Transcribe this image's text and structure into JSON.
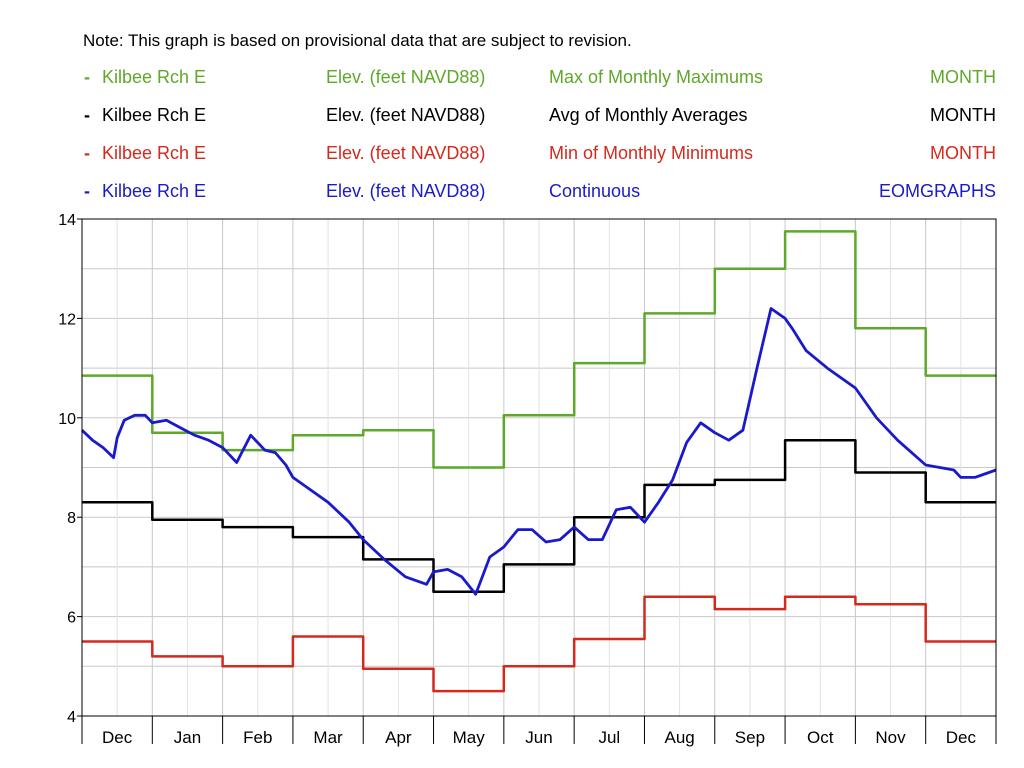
{
  "note": "Note: This graph is based on provisional data that are subject to revision.",
  "legend": [
    {
      "dash": "-",
      "site": "Kilbee Rch E",
      "parameter": "Elev. (feet NAVD88)",
      "statistic": "Max of Monthly Maximums",
      "interval": "MONTH",
      "color": "#5fa82a"
    },
    {
      "dash": "-",
      "site": "Kilbee Rch E",
      "parameter": "Elev. (feet NAVD88)",
      "statistic": "Avg of Monthly Averages",
      "interval": "MONTH",
      "color": "#000000"
    },
    {
      "dash": "-",
      "site": "Kilbee Rch E",
      "parameter": "Elev. (feet NAVD88)",
      "statistic": "Min of Monthly Minimums",
      "interval": "MONTH",
      "color": "#d42a1e"
    },
    {
      "dash": "-",
      "site": "Kilbee Rch E",
      "parameter": "Elev. (feet NAVD88)",
      "statistic": "Continuous",
      "interval": "EOMGRAPHS",
      "color": "#1a1acc"
    }
  ],
  "chart_data": {
    "type": "line",
    "title": "",
    "xlabel": "",
    "ylabel": "",
    "categories": [
      "Dec",
      "Jan",
      "Feb",
      "Mar",
      "Apr",
      "May",
      "Jun",
      "Jul",
      "Aug",
      "Sep",
      "Oct",
      "Nov",
      "Dec"
    ],
    "ylim": [
      4,
      14
    ],
    "yticks": [
      4,
      6,
      8,
      10,
      12,
      14
    ],
    "grid": true,
    "series": [
      {
        "name": "Max of Monthly Maximums",
        "style": "step",
        "color": "#5fa82a",
        "values": [
          10.85,
          9.7,
          9.35,
          9.65,
          9.75,
          9.0,
          10.05,
          11.1,
          12.1,
          13.0,
          13.75,
          11.8,
          10.85
        ]
      },
      {
        "name": "Avg of Monthly Averages",
        "style": "step",
        "color": "#000000",
        "values": [
          8.3,
          7.95,
          7.8,
          7.6,
          7.15,
          6.5,
          7.05,
          8.0,
          8.65,
          8.75,
          9.55,
          8.9,
          8.3
        ]
      },
      {
        "name": "Min of Monthly Minimums",
        "style": "step",
        "color": "#d42a1e",
        "values": [
          5.5,
          5.2,
          5.0,
          5.6,
          4.95,
          4.5,
          5.0,
          5.55,
          6.4,
          6.15,
          6.4,
          6.25,
          5.5
        ]
      },
      {
        "name": "Continuous",
        "style": "line",
        "color": "#1a1acc",
        "x": [
          0,
          0.15,
          0.3,
          0.45,
          0.5,
          0.6,
          0.75,
          0.9,
          1.0,
          1.2,
          1.4,
          1.6,
          1.8,
          2.0,
          2.2,
          2.4,
          2.6,
          2.75,
          2.9,
          3.0,
          3.2,
          3.5,
          3.8,
          4.0,
          4.3,
          4.6,
          4.9,
          5.0,
          5.2,
          5.4,
          5.6,
          5.8,
          6.0,
          6.2,
          6.4,
          6.6,
          6.8,
          7.0,
          7.2,
          7.4,
          7.6,
          7.8,
          8.0,
          8.2,
          8.4,
          8.6,
          8.8,
          9.0,
          9.2,
          9.4,
          9.6,
          9.8,
          10.0,
          10.1,
          10.3,
          10.6,
          11.0,
          11.3,
          11.6,
          11.8,
          12.0,
          12.2,
          12.4,
          12.5,
          12.7,
          12.8,
          13.0
        ],
        "values": [
          9.75,
          9.55,
          9.4,
          9.2,
          9.6,
          9.95,
          10.05,
          10.05,
          9.9,
          9.95,
          9.8,
          9.65,
          9.55,
          9.4,
          9.1,
          9.65,
          9.35,
          9.3,
          9.05,
          8.8,
          8.6,
          8.3,
          7.9,
          7.55,
          7.15,
          6.8,
          6.65,
          6.9,
          6.95,
          6.8,
          6.45,
          7.2,
          7.4,
          7.75,
          7.75,
          7.5,
          7.55,
          7.8,
          7.55,
          7.55,
          8.15,
          8.2,
          7.9,
          8.3,
          8.75,
          9.5,
          9.9,
          9.7,
          9.55,
          9.75,
          11.0,
          12.2,
          12.0,
          11.8,
          11.35,
          11.0,
          10.6,
          10.0,
          9.55,
          9.3,
          9.05,
          9.0,
          8.95,
          8.8,
          8.8,
          8.85,
          8.95
        ]
      }
    ]
  }
}
